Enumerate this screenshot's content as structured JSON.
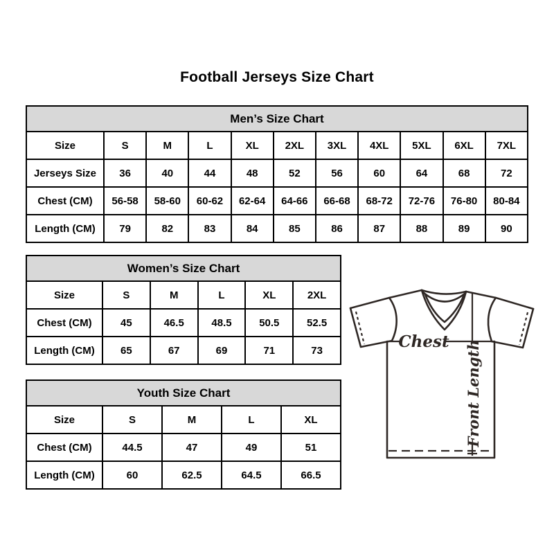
{
  "page": {
    "title": "Football Jerseys Size Chart"
  },
  "tables": [
    {
      "title": "Men’s Size Chart",
      "rows": [
        [
          "Size",
          "S",
          "M",
          "L",
          "XL",
          "2XL",
          "3XL",
          "4XL",
          "5XL",
          "6XL",
          "7XL"
        ],
        [
          "Jerseys Size",
          "36",
          "40",
          "44",
          "48",
          "52",
          "56",
          "60",
          "64",
          "68",
          "72"
        ],
        [
          "Chest (CM)",
          "56-58",
          "58-60",
          "60-62",
          "62-64",
          "64-66",
          "66-68",
          "68-72",
          "72-76",
          "76-80",
          "80-84"
        ],
        [
          "Length (CM)",
          "79",
          "82",
          "83",
          "84",
          "85",
          "86",
          "87",
          "88",
          "89",
          "90"
        ]
      ]
    },
    {
      "title": "Women’s Size Chart",
      "rows": [
        [
          "Size",
          "S",
          "M",
          "L",
          "XL",
          "2XL"
        ],
        [
          "Chest (CM)",
          "45",
          "46.5",
          "48.5",
          "50.5",
          "52.5"
        ],
        [
          "Length (CM)",
          "65",
          "67",
          "69",
          "71",
          "73"
        ]
      ]
    },
    {
      "title": "Youth Size Chart",
      "rows": [
        [
          "Size",
          "S",
          "M",
          "L",
          "XL"
        ],
        [
          "Chest (CM)",
          "44.5",
          "47",
          "49",
          "51"
        ],
        [
          "Length (CM)",
          "60",
          "62.5",
          "64.5",
          "66.5"
        ]
      ]
    }
  ],
  "diagram": {
    "chest_label": "Chest",
    "front_length_label": "Front Length"
  },
  "colors": {
    "table_header_bg": "#d8d8d8",
    "border": "#000000",
    "diagram_line": "#2e2724"
  }
}
